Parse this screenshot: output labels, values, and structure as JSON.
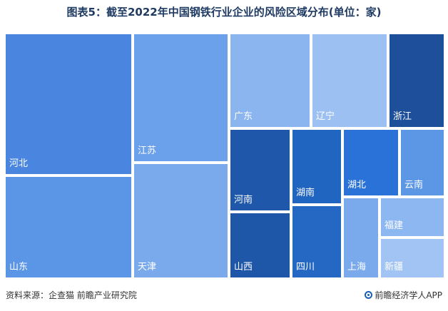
{
  "title": "图表5：截至2022年中国钢铁行业企业的风险区域分布(单位：家)",
  "footer": {
    "source": "资料来源：企查猫 前瞻产业研究院",
    "brand": "前瞻经济学人APP",
    "brand_icon": "qianzhan-logo-icon"
  },
  "chart_data": {
    "type": "treemap",
    "title": "图表5：截至2022年中国钢铁行业企业的风险区域分布(单位：家)",
    "unit": "家",
    "categories": [
      "河北",
      "山东",
      "江苏",
      "天津",
      "广东",
      "辽宁",
      "浙江",
      "河南",
      "山西",
      "湖南",
      "四川",
      "湖北",
      "云南",
      "上海",
      "福建",
      "新疆"
    ],
    "colors": {
      "河北": "#4a86e0",
      "山东": "#5b95e6",
      "江苏": "#6ba0ea",
      "天津": "#7aaaec",
      "广东": "#8ab5ef",
      "辽宁": "#9cc0f2",
      "浙江": "#1e4f9a",
      "河南": "#1f58aa",
      "山西": "#1f57a8",
      "湖南": "#2065c0",
      "四川": "#2468c4",
      "湖北": "#2a72d8",
      "云南": "#5c97e6",
      "上海": "#7aaaec",
      "福建": "#8cb7f0",
      "新疆": "#a2c4f4"
    }
  }
}
